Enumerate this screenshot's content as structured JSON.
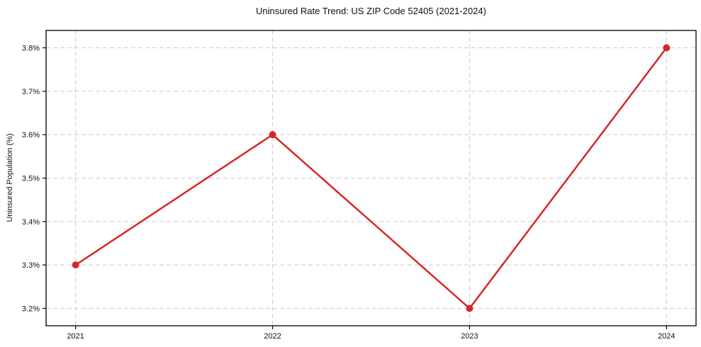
{
  "title": "Uninsured Rate Trend: US ZIP Code 52405 (2021-2024)",
  "chart_data": {
    "type": "line",
    "title": "Uninsured Rate Trend: US ZIP Code 52405 (2021-2024)",
    "xlabel": "",
    "ylabel": "Uninsured Population (%)",
    "x": [
      2021,
      2022,
      2023,
      2024
    ],
    "series": [
      {
        "name": "Uninsured rate",
        "values": [
          3.3,
          3.6,
          3.2,
          3.8
        ]
      }
    ],
    "xtick_labels": [
      "2021",
      "2022",
      "2023",
      "2024"
    ],
    "yticks": [
      3.2,
      3.3,
      3.4,
      3.5,
      3.6,
      3.7,
      3.8
    ],
    "ytick_labels": [
      "3.2%",
      "3.3%",
      "3.4%",
      "3.5%",
      "3.6%",
      "3.7%",
      "3.8%"
    ],
    "xlim": [
      2020.85,
      2024.15
    ],
    "ylim": [
      3.16,
      3.84
    ],
    "grid": true,
    "legend": "none",
    "line_color": "#d62728",
    "marker": "circle",
    "marker_size": 5,
    "line_width": 2.5,
    "grid_color": "#cccccc",
    "spine_color": "#000000",
    "background_color": "#ffffff"
  }
}
